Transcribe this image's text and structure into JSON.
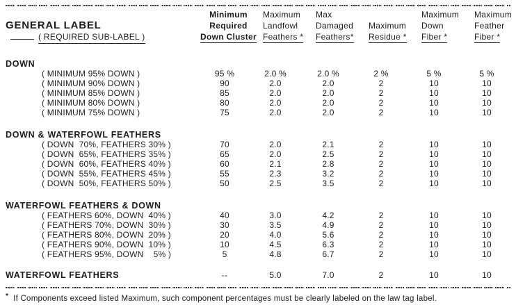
{
  "page": {
    "text_color": "#1c1c1c",
    "background_color": "#ffffff"
  },
  "header": {
    "general_label": "GENERAL LABEL",
    "required_sub_label": "( REQUIRED SUB-LABEL )",
    "columns": [
      {
        "id": "minimum-required-down-cluster",
        "lines": [
          "Minimum",
          "Required",
          "Down Cluster"
        ]
      },
      {
        "id": "maximum-landfowl-feathers",
        "lines": [
          "Maximum",
          "Landfowl",
          "Feathers *"
        ]
      },
      {
        "id": "max-damaged-feathers",
        "lines": [
          "Max",
          "Damaged",
          "Feathers*"
        ]
      },
      {
        "id": "maximum-residue",
        "lines": [
          "Maximum",
          "Residue *"
        ]
      },
      {
        "id": "maximum-down-fiber",
        "lines": [
          "Maximum",
          "Down",
          "Fiber *"
        ]
      },
      {
        "id": "maximum-feather-fiber",
        "lines": [
          "Maximum",
          "Feather",
          "Fiber *"
        ]
      }
    ]
  },
  "sections": [
    {
      "title": "DOWN",
      "rows": [
        {
          "label": "( MINIMUM 95% DOWN )",
          "values": [
            "95 %",
            "2.0 %",
            "2.0 %",
            "2 %",
            "5 %",
            "5 %"
          ]
        },
        {
          "label": "( MINIMUM 90% DOWN )",
          "values": [
            "90",
            "2.0",
            "2.0",
            "2",
            "10",
            "10"
          ]
        },
        {
          "label": "( MINIMUM 85% DOWN )",
          "values": [
            "85",
            "2.0",
            "2.0",
            "2",
            "10",
            "10"
          ]
        },
        {
          "label": "( MINIMUM 80% DOWN )",
          "values": [
            "80",
            "2.0",
            "2.0",
            "2",
            "10",
            "10"
          ]
        },
        {
          "label": "( MINIMUM 75% DOWN )",
          "values": [
            "75",
            "2.0",
            "2.0",
            "2",
            "10",
            "10"
          ]
        }
      ]
    },
    {
      "title": "DOWN & WATERFOWL FEATHERS",
      "rows": [
        {
          "label": "( DOWN  70%, FEATHERS 30% )",
          "values": [
            "70",
            "2.0",
            "2.1",
            "2",
            "10",
            "10"
          ]
        },
        {
          "label": "( DOWN  65%, FEATHERS 35% )",
          "values": [
            "65",
            "2.0",
            "2.5",
            "2",
            "10",
            "10"
          ]
        },
        {
          "label": "( DOWN  60%, FEATHERS 40% )",
          "values": [
            "60",
            "2.1",
            "2.8",
            "2",
            "10",
            "10"
          ]
        },
        {
          "label": "( DOWN  55%, FEATHERS 45% )",
          "values": [
            "55",
            "2.3",
            "3.2",
            "2",
            "10",
            "10"
          ]
        },
        {
          "label": "( DOWN  50%, FEATHERS 50% )",
          "values": [
            "50",
            "2.5",
            "3.5",
            "2",
            "10",
            "10"
          ]
        }
      ]
    },
    {
      "title": "WATERFOWL FEATHERS & DOWN",
      "rows": [
        {
          "label": "( FEATHERS 60%, DOWN  40% )",
          "values": [
            "40",
            "3.0",
            "4.2",
            "2",
            "10",
            "10"
          ]
        },
        {
          "label": "( FEATHERS 70%, DOWN  30% )",
          "values": [
            "30",
            "3.5",
            "4.9",
            "2",
            "10",
            "10"
          ]
        },
        {
          "label": "( FEATHERS 80%, DOWN  20% )",
          "values": [
            "20",
            "4.0",
            "5.6",
            "2",
            "10",
            "10"
          ]
        },
        {
          "label": "( FEATHERS 90%, DOWN  10% )",
          "values": [
            "10",
            "4.5",
            "6.3",
            "2",
            "10",
            "10"
          ]
        },
        {
          "label": "( FEATHERS 95%, DOWN    5% )",
          "values": [
            "5",
            "4.8",
            "6.7",
            "2",
            "10",
            "10"
          ]
        }
      ]
    }
  ],
  "summary_row": {
    "label": "WATERFOWL FEATHERS",
    "values": [
      "--",
      "5.0",
      "7.0",
      "2",
      "10",
      "10"
    ]
  },
  "footnote": {
    "marker": "*",
    "text": "If Components exceed listed Maximum, such component percentages must be clearly labeled on the law tag label."
  }
}
